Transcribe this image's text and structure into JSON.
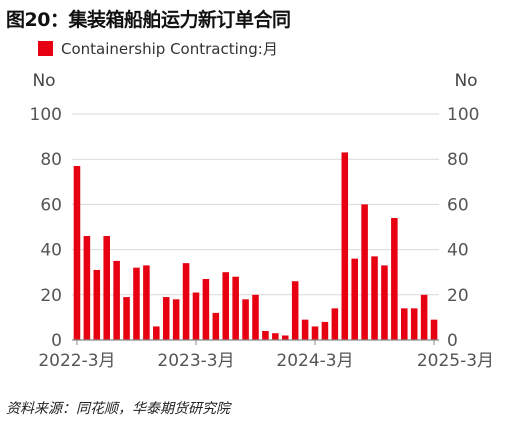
{
  "figure": {
    "title": "图20：集装箱船舶运力新订单合同",
    "source": "资料来源：同花顺，华泰期货研究院"
  },
  "chart_data": {
    "type": "bar",
    "title": "图20：集装箱船舶运力新订单合同",
    "legend": {
      "position": "top-left",
      "entries": [
        "Containership Contracting:月"
      ]
    },
    "series": [
      {
        "name": "Containership Contracting:月",
        "color": "#e60012",
        "values": [
          77,
          46,
          31,
          46,
          35,
          19,
          32,
          33,
          6,
          19,
          18,
          34,
          21,
          27,
          12,
          30,
          28,
          18,
          20,
          4,
          3,
          2,
          26,
          9,
          6,
          8,
          14,
          83,
          36,
          60,
          37,
          33,
          54,
          14,
          14,
          20,
          9
        ]
      }
    ],
    "x_start": "2022-3",
    "x_tick_labels": [
      "2022-3月",
      "2023-3月",
      "2024-3月",
      "2025-3月"
    ],
    "x_tick_index": [
      0,
      12,
      24,
      36
    ],
    "y_left": {
      "unit_label": "No",
      "ylim": [
        0,
        100
      ],
      "ticks": [
        "0",
        "20",
        "40",
        "60",
        "80",
        "100"
      ]
    },
    "y_right": {
      "unit_label": "No",
      "ylim": [
        0,
        100
      ],
      "ticks": [
        "0",
        "20",
        "40",
        "60",
        "80",
        "100"
      ]
    },
    "grid": true
  }
}
